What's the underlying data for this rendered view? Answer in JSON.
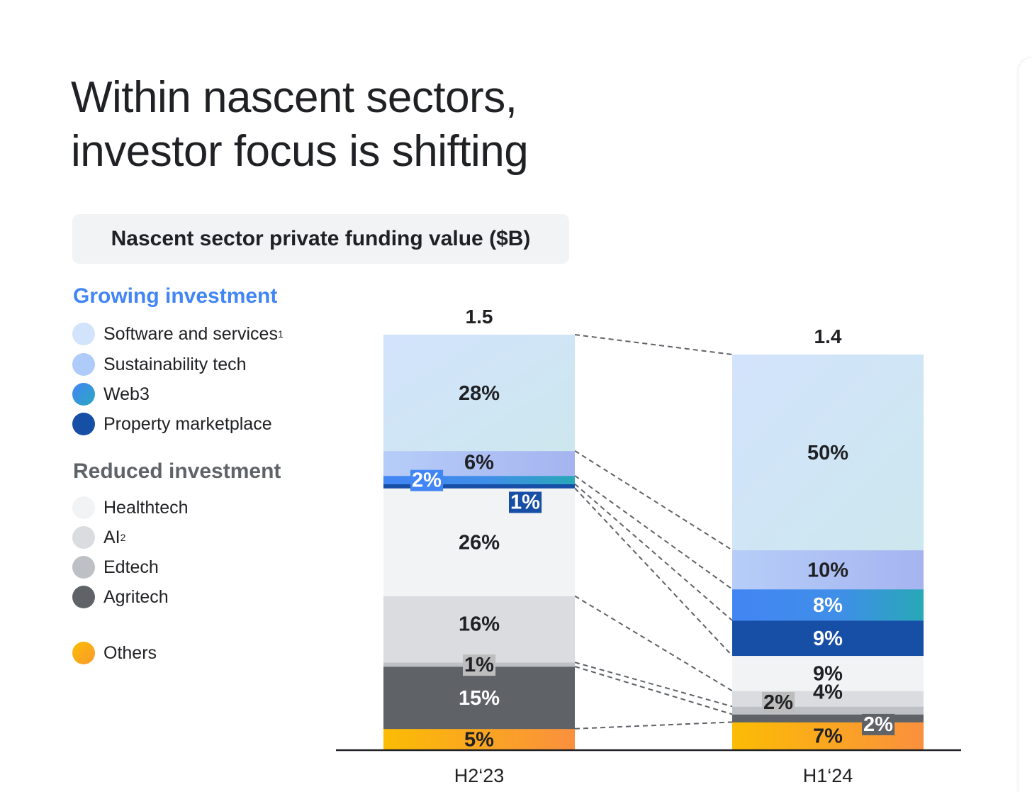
{
  "title_line1": "Within nascent sectors,",
  "title_line2": "investor focus is shifting",
  "subtitle": "Nascent sector private funding value ($B)",
  "legend": {
    "growing_heading": "Growing investment",
    "reduced_heading": "Reduced investment",
    "growing": [
      {
        "key": "software",
        "label": "Software and services",
        "sup": "1",
        "color": "#d2e3fc"
      },
      {
        "key": "sustainability",
        "label": "Sustainability tech",
        "sup": "",
        "color": "#aecbfa"
      },
      {
        "key": "web3",
        "label": "Web3",
        "sup": "",
        "color": "#4285f4"
      },
      {
        "key": "property",
        "label": "Property marketplace",
        "sup": "",
        "color": "#174ea6"
      }
    ],
    "reduced": [
      {
        "key": "healthtech",
        "label": "Healthtech",
        "sup": "",
        "color": "#f1f3f4"
      },
      {
        "key": "ai",
        "label": "AI",
        "sup": "2",
        "color": "#dadce0"
      },
      {
        "key": "edtech",
        "label": "Edtech",
        "sup": "",
        "color": "#bdc1c6"
      },
      {
        "key": "agritech",
        "label": "Agritech",
        "sup": "",
        "color": "#5f6368"
      }
    ],
    "others": {
      "key": "others",
      "label": "Others",
      "sup": "",
      "color": "#fbbc04"
    }
  },
  "chart_data": {
    "type": "bar",
    "stacked": true,
    "normalized": true,
    "categories": [
      "H2‘23",
      "H1‘24"
    ],
    "totals": [
      1.5,
      1.4
    ],
    "totals_labels": [
      "1.5",
      "1.4"
    ],
    "series": [
      {
        "name": "Others",
        "key": "others",
        "values": [
          5,
          7
        ],
        "labels": [
          "5%",
          "7%"
        ]
      },
      {
        "name": "Agritech",
        "key": "agritech",
        "values": [
          15,
          2
        ],
        "labels": [
          "15%",
          "2%"
        ]
      },
      {
        "name": "Edtech",
        "key": "edtech",
        "values": [
          1,
          2
        ],
        "labels": [
          "1%",
          "2%"
        ]
      },
      {
        "name": "AI",
        "key": "ai",
        "values": [
          16,
          4
        ],
        "labels": [
          "16%",
          "4%"
        ]
      },
      {
        "name": "Healthtech",
        "key": "healthtech",
        "values": [
          26,
          9
        ],
        "labels": [
          "26%",
          "9%"
        ]
      },
      {
        "name": "Property marketplace",
        "key": "property",
        "values": [
          1,
          9
        ],
        "labels": [
          "1%",
          "9%"
        ]
      },
      {
        "name": "Web3",
        "key": "web3",
        "values": [
          2,
          8
        ],
        "labels": [
          "2%",
          "8%"
        ]
      },
      {
        "name": "Sustainability tech",
        "key": "sustainability",
        "values": [
          6,
          10
        ],
        "labels": [
          "6%",
          "10%"
        ]
      },
      {
        "name": "Software and services",
        "key": "software",
        "values": [
          28,
          50
        ],
        "labels": [
          "28%",
          "50%"
        ]
      }
    ],
    "unit": "%",
    "connectors": "dashed lines between corresponding segments",
    "grid": false,
    "legend_position": "left"
  }
}
